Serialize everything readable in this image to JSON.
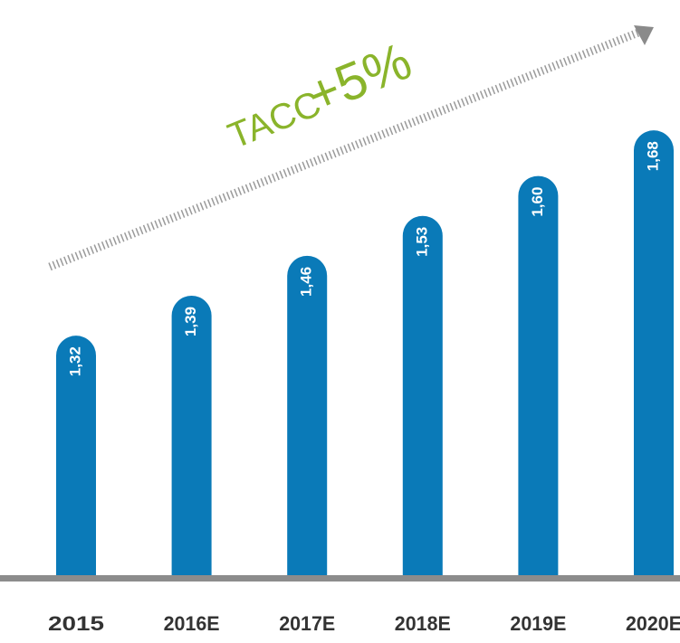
{
  "chart_data": {
    "type": "bar",
    "annotation": [
      "TACC",
      "+5%"
    ],
    "categories": [
      "2015",
      "2016E",
      "2017E",
      "2018E",
      "2019E",
      "2020E"
    ],
    "values": [
      1.32,
      1.39,
      1.46,
      1.53,
      1.6,
      1.68
    ],
    "value_labels": [
      "1,32",
      "1,39",
      "1,46",
      "1,53",
      "1,60",
      "1,68"
    ],
    "color": "#0a7ab8",
    "ylim": [
      0.9,
      1.75
    ]
  }
}
